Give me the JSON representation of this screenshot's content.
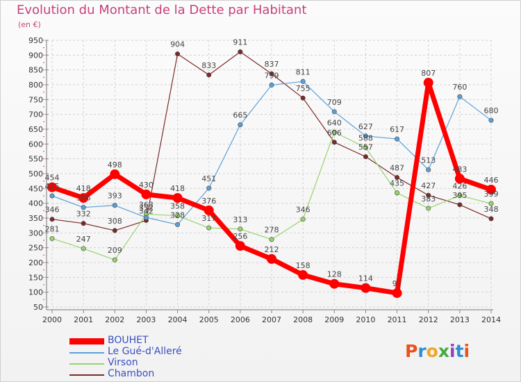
{
  "title": "Evolution du Montant de la Dette par Habitant",
  "unit": "(en €)",
  "logo": {
    "text": "Proxiti",
    "colors": [
      "#e8521c",
      "#2f8ed1",
      "#f2a526",
      "#47a843",
      "#8a47b8",
      "#2f8ed1",
      "#e8521c"
    ]
  },
  "chart_data": {
    "type": "line",
    "title": "Evolution du Montant de la Dette par Habitant",
    "ylabel": "(en €)",
    "x": [
      2000,
      2001,
      2002,
      2003,
      2004,
      2005,
      2006,
      2007,
      2008,
      2009,
      2010,
      2011,
      2012,
      2013,
      2014
    ],
    "ylim": [
      50,
      950
    ],
    "yticks": [
      50,
      100,
      150,
      200,
      250,
      300,
      350,
      400,
      450,
      500,
      550,
      600,
      650,
      700,
      750,
      800,
      850,
      900,
      950
    ],
    "grid": true,
    "legend_position": "bottom-left",
    "series": [
      {
        "name": "Chambon",
        "color": "#7b2a2a",
        "values": [
          346,
          332,
          308,
          342,
          904,
          833,
          911,
          837,
          755,
          606,
          557,
          487,
          427,
          395,
          348
        ]
      },
      {
        "name": "Virson",
        "color": "#96d36b",
        "values": [
          281,
          247,
          209,
          363,
          358,
          317,
          313,
          278,
          346,
          640,
          588,
          435,
          383,
          426,
          399
        ]
      },
      {
        "name": "Le Gué-d'Alleré",
        "color": "#5b9fd6",
        "values": [
          425,
          386,
          393,
          352,
          328,
          451,
          665,
          799,
          811,
          709,
          627,
          617,
          513,
          760,
          680
        ]
      },
      {
        "name": "BOUHET",
        "color": "#ff0000",
        "values": [
          454,
          418,
          498,
          430,
          418,
          376,
          256,
          212,
          158,
          128,
          114,
          97,
          807,
          483,
          446
        ]
      }
    ],
    "legend": [
      "BOUHET",
      "Le Gué-d'Alleré",
      "Virson",
      "Chambon"
    ]
  }
}
